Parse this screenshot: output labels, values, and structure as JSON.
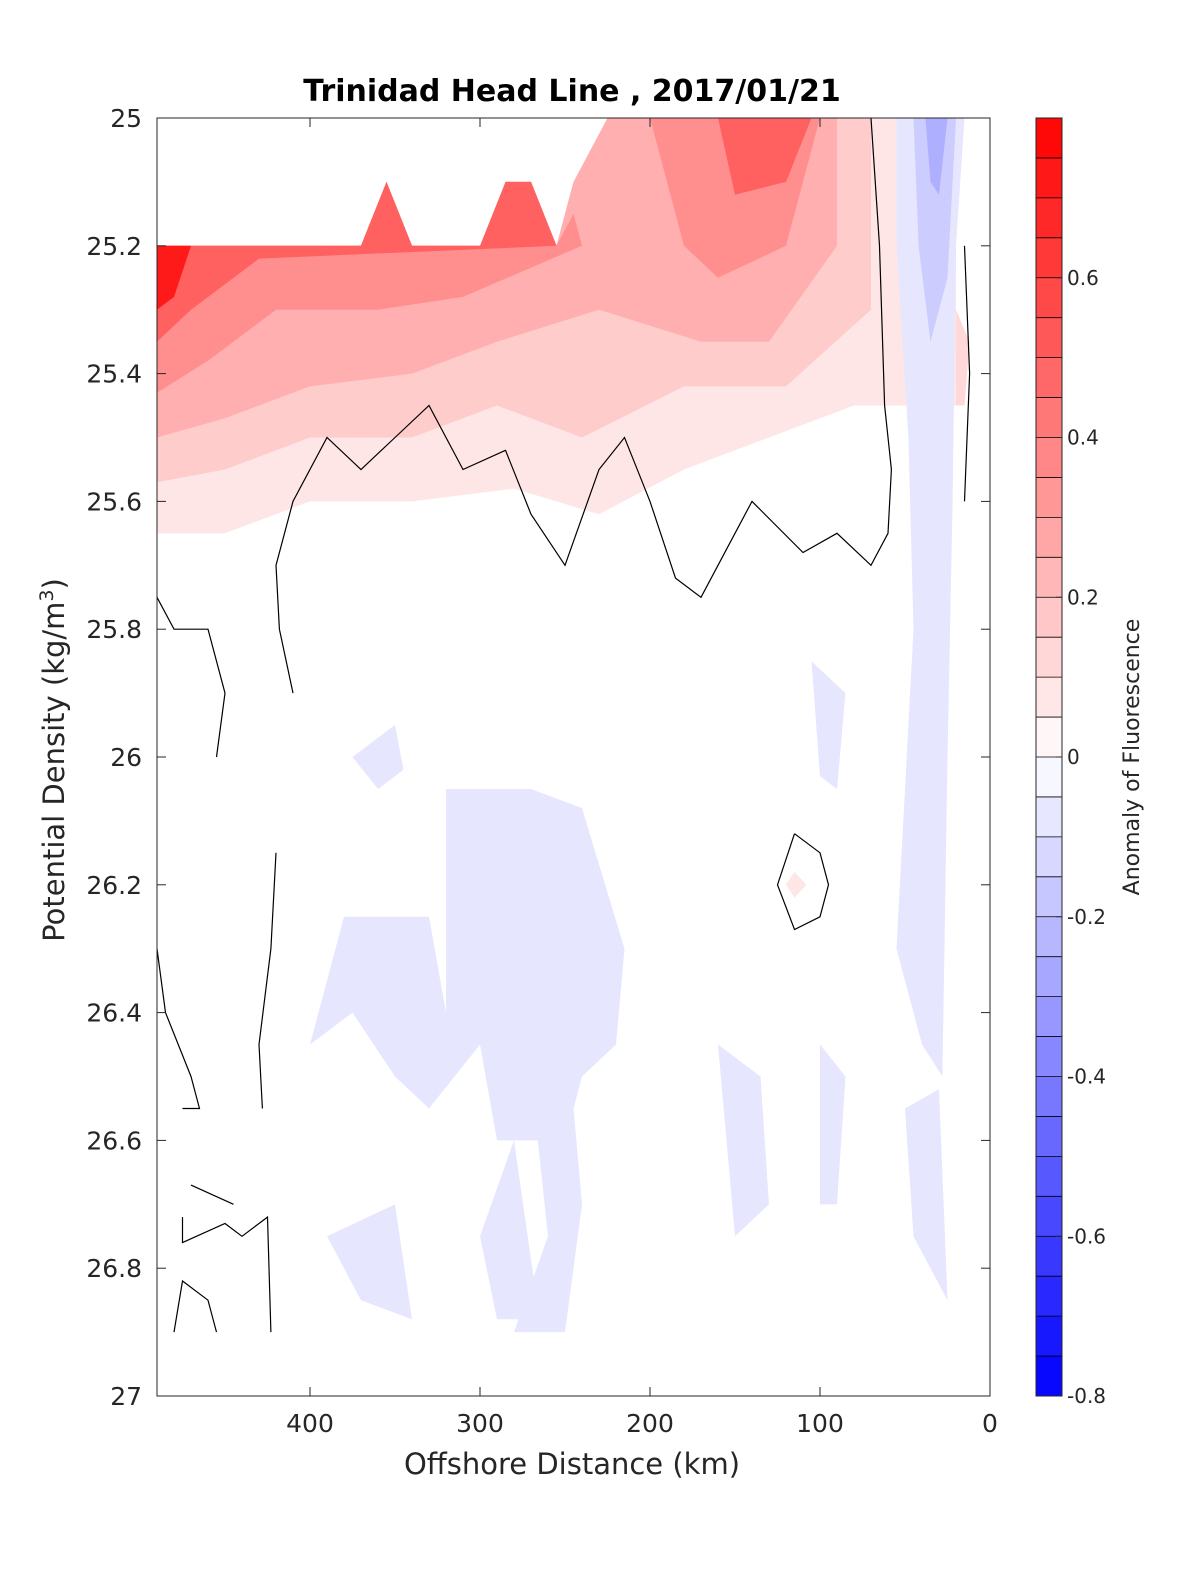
{
  "chart_data": {
    "type": "contour",
    "title": "Trinidad Head Line , 2017/01/21",
    "xlabel": "Offshore Distance (km)",
    "ylabel": "Potential Density (kg/m3)",
    "ylabel_main": "Potential Density (kg/m",
    "ylabel_sup": "3",
    "ylabel_end": ")",
    "xlim": [
      490,
      0
    ],
    "ylim": [
      25,
      27
    ],
    "x_reversed": true,
    "y_reversed": true,
    "xticks": [
      400,
      300,
      200,
      100,
      0
    ],
    "xtick_labels": [
      "400",
      "300",
      "200",
      "100",
      "0"
    ],
    "yticks": [
      25,
      25.2,
      25.4,
      25.6,
      25.8,
      26,
      26.2,
      26.4,
      26.6,
      26.8,
      27
    ],
    "ytick_labels": [
      "25",
      "25.2",
      "25.4",
      "25.6",
      "25.8",
      "26",
      "26.2",
      "26.4",
      "26.6",
      "26.8",
      "27"
    ],
    "colorbar": {
      "label": "Anomaly of Fluorescence",
      "range": [
        -0.8,
        0.8
      ],
      "levels": 32,
      "ticks": [
        0.6,
        0.4,
        0.2,
        0,
        -0.2,
        -0.4,
        -0.6,
        -0.8
      ],
      "tick_labels": [
        "0.6",
        "0.4",
        "0.2",
        "0",
        "-0.2",
        "-0.4",
        "-0.6",
        "-0.8"
      ],
      "colors": {
        "max": "#ff0000",
        "mid": "#ffffff",
        "min": "#0000ff"
      }
    },
    "filled_regions": [
      {
        "value": 0.08,
        "points": [
          [
            490,
            25.2
          ],
          [
            370,
            25.2
          ],
          [
            355,
            25.1
          ],
          [
            340,
            25.2
          ],
          [
            295,
            25.2
          ],
          [
            285,
            25.1
          ],
          [
            270,
            25.1
          ],
          [
            255,
            25.2
          ],
          [
            245,
            25.1
          ],
          [
            220,
            25.0
          ],
          [
            20,
            25.0
          ],
          [
            20,
            25.45
          ],
          [
            80,
            25.45
          ],
          [
            130,
            25.5
          ],
          [
            180,
            25.55
          ],
          [
            230,
            25.62
          ],
          [
            280,
            25.58
          ],
          [
            340,
            25.6
          ],
          [
            400,
            25.6
          ],
          [
            450,
            25.65
          ],
          [
            490,
            25.65
          ]
        ]
      },
      {
        "value": 0.16,
        "points": [
          [
            490,
            25.2
          ],
          [
            370,
            25.2
          ],
          [
            355,
            25.1
          ],
          [
            340,
            25.2
          ],
          [
            295,
            25.2
          ],
          [
            285,
            25.1
          ],
          [
            270,
            25.1
          ],
          [
            255,
            25.2
          ],
          [
            245,
            25.1
          ],
          [
            220,
            25.0
          ],
          [
            70,
            25.0
          ],
          [
            70,
            25.3
          ],
          [
            120,
            25.42
          ],
          [
            180,
            25.42
          ],
          [
            240,
            25.5
          ],
          [
            290,
            25.45
          ],
          [
            340,
            25.5
          ],
          [
            400,
            25.5
          ],
          [
            450,
            25.55
          ],
          [
            490,
            25.57
          ]
        ]
      },
      {
        "value": 0.25,
        "points": [
          [
            490,
            25.2
          ],
          [
            370,
            25.2
          ],
          [
            355,
            25.1
          ],
          [
            340,
            25.2
          ],
          [
            295,
            25.2
          ],
          [
            285,
            25.1
          ],
          [
            270,
            25.1
          ],
          [
            255,
            25.2
          ],
          [
            245,
            25.1
          ],
          [
            225,
            25.0
          ],
          [
            90,
            25.0
          ],
          [
            90,
            25.2
          ],
          [
            130,
            25.35
          ],
          [
            170,
            25.35
          ],
          [
            230,
            25.3
          ],
          [
            290,
            25.35
          ],
          [
            340,
            25.4
          ],
          [
            400,
            25.42
          ],
          [
            450,
            25.47
          ],
          [
            490,
            25.5
          ]
        ]
      },
      {
        "value": 0.35,
        "points": [
          [
            490,
            25.2
          ],
          [
            370,
            25.2
          ],
          [
            355,
            25.1
          ],
          [
            340,
            25.2
          ],
          [
            295,
            25.2
          ],
          [
            285,
            25.1
          ],
          [
            270,
            25.1
          ],
          [
            255,
            25.2
          ],
          [
            245,
            25.15
          ],
          [
            240,
            25.2
          ],
          [
            310,
            25.28
          ],
          [
            360,
            25.3
          ],
          [
            420,
            25.3
          ],
          [
            460,
            25.38
          ],
          [
            490,
            25.43
          ]
        ]
      },
      {
        "value": 0.35,
        "points": [
          [
            200,
            25.0
          ],
          [
            100,
            25.0
          ],
          [
            120,
            25.2
          ],
          [
            160,
            25.25
          ],
          [
            180,
            25.2
          ]
        ]
      },
      {
        "value": 0.5,
        "points": [
          [
            490,
            25.2
          ],
          [
            370,
            25.2
          ],
          [
            355,
            25.1
          ],
          [
            340,
            25.2
          ],
          [
            300,
            25.2
          ],
          [
            285,
            25.1
          ],
          [
            270,
            25.1
          ],
          [
            255,
            25.2
          ],
          [
            430,
            25.22
          ],
          [
            470,
            25.3
          ],
          [
            490,
            25.35
          ]
        ]
      },
      {
        "value": 0.5,
        "points": [
          [
            160,
            25.0
          ],
          [
            105,
            25.0
          ],
          [
            120,
            25.1
          ],
          [
            150,
            25.12
          ]
        ]
      },
      {
        "value": 0.72,
        "points": [
          [
            490,
            25.2
          ],
          [
            470,
            25.2
          ],
          [
            480,
            25.28
          ],
          [
            490,
            25.3
          ]
        ]
      },
      {
        "value": 0.12,
        "points": [
          [
            20,
            25.3
          ],
          [
            12,
            25.35
          ],
          [
            15,
            25.45
          ],
          [
            20,
            25.45
          ]
        ]
      },
      {
        "value": -0.08,
        "points": [
          [
            55,
            25.0
          ],
          [
            15,
            25.0
          ],
          [
            20,
            25.2
          ],
          [
            22,
            25.6
          ],
          [
            25,
            26.0
          ],
          [
            28,
            26.5
          ],
          [
            40,
            26.45
          ],
          [
            55,
            26.3
          ],
          [
            45,
            25.8
          ],
          [
            48,
            25.5
          ],
          [
            55,
            25.2
          ]
        ]
      },
      {
        "value": -0.16,
        "points": [
          [
            45,
            25.0
          ],
          [
            20,
            25.0
          ],
          [
            25,
            25.25
          ],
          [
            35,
            25.35
          ],
          [
            42,
            25.2
          ]
        ]
      },
      {
        "value": -0.25,
        "points": [
          [
            38,
            25.0
          ],
          [
            25,
            25.0
          ],
          [
            30,
            25.12
          ],
          [
            35,
            25.1
          ]
        ]
      },
      {
        "value": -0.08,
        "points": [
          [
            375,
            26.0
          ],
          [
            350,
            25.95
          ],
          [
            345,
            26.02
          ],
          [
            360,
            26.05
          ]
        ]
      },
      {
        "value": -0.08,
        "points": [
          [
            320,
            26.05
          ],
          [
            270,
            26.05
          ],
          [
            240,
            26.08
          ],
          [
            215,
            26.3
          ],
          [
            220,
            26.45
          ],
          [
            240,
            26.5
          ],
          [
            250,
            26.6
          ],
          [
            290,
            26.6
          ],
          [
            300,
            26.45
          ],
          [
            330,
            26.55
          ],
          [
            350,
            26.5
          ],
          [
            375,
            26.4
          ],
          [
            400,
            26.45
          ],
          [
            380,
            26.25
          ],
          [
            330,
            26.25
          ],
          [
            320,
            26.4
          ]
        ]
      },
      {
        "value": -0.08,
        "points": [
          [
            105,
            25.85
          ],
          [
            85,
            25.9
          ],
          [
            90,
            26.05
          ],
          [
            100,
            26.03
          ]
        ]
      },
      {
        "value": -0.08,
        "points": [
          [
            270,
            26.5
          ],
          [
            245,
            26.55
          ],
          [
            240,
            26.7
          ],
          [
            250,
            26.9
          ],
          [
            280,
            26.9
          ],
          [
            260,
            26.75
          ]
        ]
      },
      {
        "value": -0.08,
        "points": [
          [
            390,
            26.75
          ],
          [
            350,
            26.7
          ],
          [
            340,
            26.88
          ],
          [
            370,
            26.85
          ]
        ]
      },
      {
        "value": -0.08,
        "points": [
          [
            300,
            26.75
          ],
          [
            280,
            26.6
          ],
          [
            265,
            26.88
          ],
          [
            290,
            26.88
          ]
        ]
      },
      {
        "value": -0.08,
        "points": [
          [
            160,
            26.45
          ],
          [
            135,
            26.5
          ],
          [
            130,
            26.7
          ],
          [
            150,
            26.75
          ]
        ]
      },
      {
        "value": -0.08,
        "points": [
          [
            100,
            26.45
          ],
          [
            85,
            26.5
          ],
          [
            90,
            26.7
          ],
          [
            100,
            26.7
          ]
        ]
      },
      {
        "value": -0.08,
        "points": [
          [
            50,
            26.55
          ],
          [
            30,
            26.52
          ],
          [
            25,
            26.85
          ],
          [
            45,
            26.75
          ]
        ]
      },
      {
        "value": 0.08,
        "points": [
          [
            115,
            26.18
          ],
          [
            108,
            26.2
          ],
          [
            115,
            26.22
          ],
          [
            120,
            26.2
          ]
        ]
      }
    ],
    "contour_lines": [
      {
        "level": 0,
        "points": [
          [
            70,
            25.0
          ],
          [
            65,
            25.2
          ],
          [
            62,
            25.45
          ],
          [
            58,
            25.55
          ],
          [
            60,
            25.65
          ],
          [
            70,
            25.7
          ],
          [
            90,
            25.65
          ],
          [
            110,
            25.68
          ],
          [
            140,
            25.6
          ],
          [
            150,
            25.65
          ],
          [
            170,
            25.75
          ],
          [
            185,
            25.72
          ],
          [
            200,
            25.6
          ],
          [
            215,
            25.5
          ],
          [
            230,
            25.55
          ],
          [
            250,
            25.7
          ],
          [
            270,
            25.62
          ],
          [
            285,
            25.52
          ],
          [
            310,
            25.55
          ],
          [
            330,
            25.45
          ],
          [
            350,
            25.5
          ],
          [
            370,
            25.55
          ],
          [
            390,
            25.5
          ],
          [
            410,
            25.6
          ],
          [
            420,
            25.7
          ],
          [
            418,
            25.8
          ],
          [
            410,
            25.9
          ]
        ]
      },
      {
        "level": 0,
        "points": [
          [
            15,
            25.2
          ],
          [
            12,
            25.4
          ],
          [
            15,
            25.6
          ]
        ]
      },
      {
        "level": 0,
        "points": [
          [
            490,
            25.75
          ],
          [
            480,
            25.8
          ],
          [
            460,
            25.8
          ],
          [
            450,
            25.9
          ],
          [
            455,
            26.0
          ]
        ]
      },
      {
        "level": 0,
        "points": [
          [
            420,
            26.15
          ],
          [
            423,
            26.3
          ],
          [
            430,
            26.45
          ],
          [
            428,
            26.55
          ]
        ]
      },
      {
        "level": 0,
        "points": [
          [
            490,
            26.3
          ],
          [
            485,
            26.4
          ],
          [
            470,
            26.5
          ],
          [
            465,
            26.55
          ],
          [
            475,
            26.55
          ]
        ]
      },
      {
        "level": 0,
        "points": [
          [
            470,
            26.67
          ],
          [
            445,
            26.7
          ]
        ]
      },
      {
        "level": 0,
        "points": [
          [
            475,
            26.72
          ],
          [
            475,
            26.76
          ],
          [
            450,
            26.73
          ],
          [
            440,
            26.75
          ],
          [
            425,
            26.72
          ],
          [
            423,
            26.9
          ]
        ]
      },
      {
        "level": 0,
        "points": [
          [
            480,
            26.9
          ],
          [
            475,
            26.82
          ],
          [
            460,
            26.85
          ],
          [
            455,
            26.9
          ]
        ]
      },
      {
        "level": 0,
        "points": [
          [
            115,
            26.12
          ],
          [
            125,
            26.2
          ],
          [
            115,
            26.27
          ],
          [
            100,
            26.25
          ],
          [
            95,
            26.2
          ],
          [
            100,
            26.15
          ],
          [
            115,
            26.12
          ]
        ]
      }
    ]
  }
}
